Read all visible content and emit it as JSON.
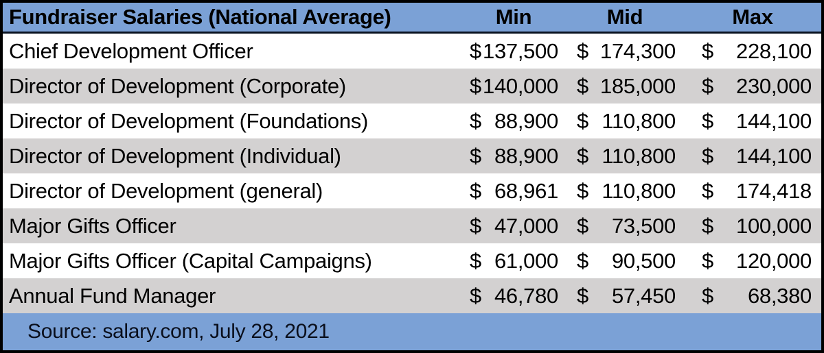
{
  "table": {
    "title": "Fundraiser Salaries (National Average)",
    "columns": {
      "min": "Min",
      "mid": "Mid",
      "max": "Max"
    },
    "currency_symbol": "$",
    "rows": [
      {
        "role": "Chief Development Officer",
        "min": "137,500",
        "mid": "174,300",
        "max": "228,100"
      },
      {
        "role": "Director of Development (Corporate)",
        "min": "140,000",
        "mid": "185,000",
        "max": "230,000"
      },
      {
        "role": "Director of Development (Foundations)",
        "min": "88,900",
        "mid": "110,800",
        "max": "144,100"
      },
      {
        "role": "Director of Development (Individual)",
        "min": "88,900",
        "mid": "110,800",
        "max": "144,100"
      },
      {
        "role": "Director of Development (general)",
        "min": "68,961",
        "mid": "110,800",
        "max": "174,418"
      },
      {
        "role": "Major Gifts Officer",
        "min": "47,000",
        "mid": "73,500",
        "max": "100,000"
      },
      {
        "role": "Major Gifts Officer (Capital Campaigns)",
        "min": "61,000",
        "mid": "90,500",
        "max": "120,000"
      },
      {
        "role": "Annual Fund Manager",
        "min": "46,780",
        "mid": "57,450",
        "max": "68,380"
      }
    ],
    "source": "Source: salary.com, July 28, 2021"
  },
  "colors": {
    "header_bg": "#7BA1D6",
    "stripe_bg": "#D3D1D1",
    "border": "#000000",
    "header_underline": "#0a1220"
  },
  "chart_data": {
    "type": "table",
    "title": "Fundraiser Salaries (National Average)",
    "columns": [
      "Min",
      "Mid",
      "Max"
    ],
    "categories": [
      "Chief Development Officer",
      "Director of Development (Corporate)",
      "Director of Development (Foundations)",
      "Director of Development (Individual)",
      "Director of Development (general)",
      "Major Gifts Officer",
      "Major Gifts Officer (Capital Campaigns)",
      "Annual Fund Manager"
    ],
    "series": [
      {
        "name": "Min",
        "values": [
          137500,
          140000,
          88900,
          88900,
          68961,
          47000,
          61000,
          46780
        ]
      },
      {
        "name": "Mid",
        "values": [
          174300,
          185000,
          110800,
          110800,
          110800,
          73500,
          90500,
          57450
        ]
      },
      {
        "name": "Max",
        "values": [
          228100,
          230000,
          144100,
          144100,
          174418,
          100000,
          120000,
          68380
        ]
      }
    ],
    "unit": "USD",
    "source": "Source: salary.com, July 28, 2021"
  }
}
